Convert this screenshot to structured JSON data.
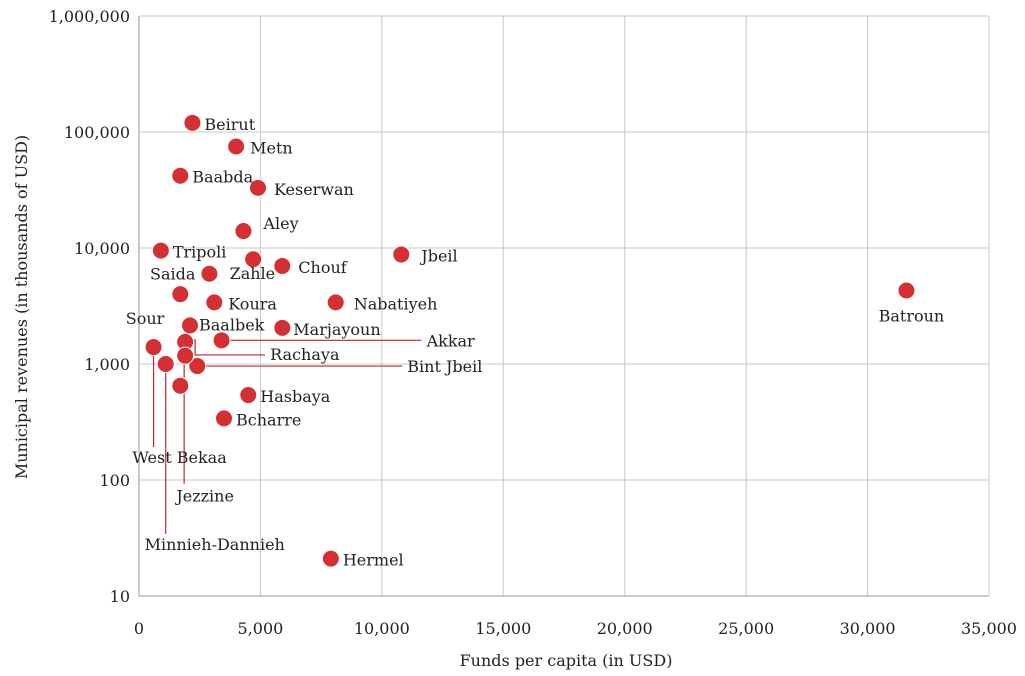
{
  "chart_data": {
    "type": "scatter",
    "xlabel": "Funds per capita (in USD)",
    "ylabel": "Municipal revenues (in thousands of USD)",
    "xlim": [
      0,
      35000
    ],
    "ylim": [
      10,
      1000000
    ],
    "yscale": "log",
    "grid": true,
    "marker_color": "#d42f33",
    "leader_color": "#c0262d",
    "x_ticks": [
      {
        "value": 0,
        "label": "0"
      },
      {
        "value": 5000,
        "label": "5,000"
      },
      {
        "value": 10000,
        "label": "10,000"
      },
      {
        "value": 15000,
        "label": "15,000"
      },
      {
        "value": 20000,
        "label": "20,000"
      },
      {
        "value": 25000,
        "label": "25,000"
      },
      {
        "value": 30000,
        "label": "30,000"
      },
      {
        "value": 35000,
        "label": "35,000"
      }
    ],
    "y_ticks": [
      {
        "value": 10,
        "label": "10"
      },
      {
        "value": 100,
        "label": "100"
      },
      {
        "value": 1000,
        "label": "1,000"
      },
      {
        "value": 10000,
        "label": "10,000"
      },
      {
        "value": 100000,
        "label": "100,000"
      },
      {
        "value": 1000000,
        "label": "1,000,000"
      }
    ],
    "points": [
      {
        "name": "Beirut",
        "x": 2200,
        "y": 120000
      },
      {
        "name": "Metn",
        "x": 4000,
        "y": 75000
      },
      {
        "name": "Baabda",
        "x": 1700,
        "y": 42000
      },
      {
        "name": "Keserwan",
        "x": 4900,
        "y": 33000
      },
      {
        "name": "Aley",
        "x": 4300,
        "y": 14000
      },
      {
        "name": "Jbeil",
        "x": 10800,
        "y": 8800
      },
      {
        "name": "Tripoli",
        "x": 900,
        "y": 9500
      },
      {
        "name": "Zahle",
        "x": 4700,
        "y": 8000
      },
      {
        "name": "Chouf",
        "x": 5900,
        "y": 7000
      },
      {
        "name": "Saida",
        "x": 2900,
        "y": 6000
      },
      {
        "name": "Batroun",
        "x": 31600,
        "y": 4300
      },
      {
        "name": "Sour",
        "x": 1700,
        "y": 4000
      },
      {
        "name": "Koura",
        "x": 3100,
        "y": 3400
      },
      {
        "name": "Nabatiyeh",
        "x": 8100,
        "y": 3400
      },
      {
        "name": "Baalbek",
        "x": 2100,
        "y": 2150
      },
      {
        "name": "Marjayoun",
        "x": 5900,
        "y": 2050
      },
      {
        "name": "Akkar",
        "x": 3400,
        "y": 1600
      },
      {
        "name": "Rachaya",
        "x": 1900,
        "y": 1550
      },
      {
        "name": "West Bekaa",
        "x": 600,
        "y": 1400
      },
      {
        "name": "Bint Jbeil",
        "x": 2400,
        "y": 960
      },
      {
        "name": "Jezzine",
        "x": 1900,
        "y": 1180
      },
      {
        "name": "Minnieh-Dannieh",
        "x": 1100,
        "y": 1000
      },
      {
        "name": "Hasbaya",
        "x": 4500,
        "y": 540
      },
      {
        "name": "Bcharre",
        "x": 3500,
        "y": 340
      },
      {
        "name": "Hermel",
        "x": 7900,
        "y": 21
      },
      {
        "name": "",
        "x": 1700,
        "y": 650
      }
    ]
  }
}
